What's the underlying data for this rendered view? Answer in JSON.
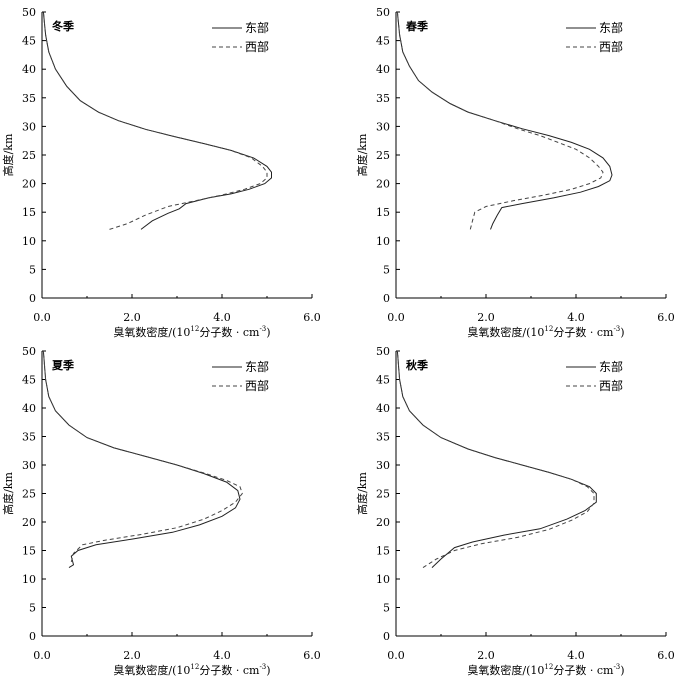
{
  "chart_data": [
    {
      "type": "line",
      "title": "冬季",
      "xlabel": "臭氧数密度/(10^12分子数·cm^-3)",
      "xlabel_pre": "臭氧数密度/(10",
      "xlabel_sup1": "12",
      "xlabel_mid": "分子数 · cm",
      "xlabel_sup2": "-3",
      "xlabel_post": ")",
      "ylabel": "高度/km",
      "xlim": [
        0,
        6
      ],
      "ylim": [
        0,
        50
      ],
      "xticks": [
        "0.0",
        "2.0",
        "4.0",
        "6.0"
      ],
      "yticks": [
        "0",
        "5",
        "10",
        "15",
        "20",
        "25",
        "30",
        "35",
        "40",
        "45",
        "50"
      ],
      "legend_position": "top-right",
      "series": [
        {
          "name": "东部",
          "style": "solid",
          "x": [
            2.2,
            2.45,
            2.8,
            3.05,
            3.2,
            3.7,
            4.2,
            4.6,
            4.95,
            5.1,
            5.1,
            5.0,
            4.7,
            4.2,
            3.6,
            2.9,
            2.3,
            1.7,
            1.25,
            0.85,
            0.55,
            0.3,
            0.15,
            0.08,
            0.03
          ],
          "y": [
            12,
            13.5,
            14.8,
            15.6,
            16.5,
            17.5,
            18.2,
            19,
            20,
            21,
            22,
            23,
            24.5,
            25.8,
            27,
            28.3,
            29.5,
            31,
            32.5,
            34.5,
            37,
            40,
            43,
            46,
            50
          ]
        },
        {
          "name": "西部",
          "style": "dashed",
          "x": [
            1.5,
            1.9,
            2.3,
            2.8,
            3.4,
            4.0,
            4.5,
            4.85,
            5.0,
            5.0,
            4.9,
            4.65,
            4.2,
            3.6,
            2.9,
            2.3,
            1.7,
            1.25,
            0.85,
            0.55,
            0.3,
            0.15,
            0.08,
            0.03
          ],
          "y": [
            12,
            13,
            14.5,
            16,
            17,
            18,
            19,
            20,
            21,
            22,
            23,
            24.5,
            25.8,
            27,
            28.3,
            29.5,
            31,
            32.5,
            34.5,
            37,
            40,
            43,
            46,
            50
          ]
        }
      ]
    },
    {
      "type": "line",
      "title": "春季",
      "xlabel": "臭氧数密度/(10^12分子数·cm^-3)",
      "xlabel_pre": "臭氧数密度/(10",
      "xlabel_sup1": "12",
      "xlabel_mid": "分子数 · cm",
      "xlabel_sup2": "-3",
      "xlabel_post": ")",
      "ylabel": "高度/km",
      "xlim": [
        0,
        6
      ],
      "ylim": [
        0,
        50
      ],
      "xticks": [
        "0.0",
        "2.0",
        "4.0",
        "6.0"
      ],
      "yticks": [
        "0",
        "5",
        "10",
        "15",
        "20",
        "25",
        "30",
        "35",
        "40",
        "45",
        "50"
      ],
      "legend_position": "top-right",
      "series": [
        {
          "name": "东部",
          "style": "solid",
          "x": [
            2.1,
            2.15,
            2.25,
            2.35,
            2.8,
            3.5,
            4.1,
            4.5,
            4.75,
            4.8,
            4.75,
            4.6,
            4.3,
            3.9,
            3.4,
            2.8,
            2.2,
            1.6,
            1.2,
            0.8,
            0.5,
            0.3,
            0.15,
            0.08,
            0.03
          ],
          "y": [
            12,
            13,
            14.5,
            15.8,
            16.5,
            17.5,
            18.5,
            19.5,
            20.5,
            21.5,
            23,
            24.5,
            26,
            27.2,
            28.4,
            29.6,
            31,
            32.5,
            34,
            36,
            38,
            40.5,
            43,
            46,
            50
          ]
        },
        {
          "name": "西部",
          "style": "dashed",
          "x": [
            1.65,
            1.7,
            1.75,
            2.0,
            2.6,
            3.3,
            3.9,
            4.3,
            4.55,
            4.6,
            4.5,
            4.3,
            4.0,
            3.6,
            3.2,
            2.7,
            2.2,
            1.6,
            1.2,
            0.8,
            0.5,
            0.3,
            0.15,
            0.08,
            0.03
          ],
          "y": [
            12,
            13.5,
            15,
            16,
            17,
            18,
            19,
            20,
            21,
            22,
            23,
            24.5,
            26,
            27.2,
            28.4,
            29.6,
            31,
            32.5,
            34,
            36,
            38,
            40.5,
            43,
            46,
            50
          ]
        }
      ]
    },
    {
      "type": "line",
      "title": "夏季",
      "xlabel": "臭氧数密度/(10^12分子数·cm^-3)",
      "xlabel_pre": "臭氧数密度/(10",
      "xlabel_sup1": "12",
      "xlabel_mid": "分子数 · cm",
      "xlabel_sup2": "-3",
      "xlabel_post": ")",
      "ylabel": "高度/km",
      "xlim": [
        0,
        6
      ],
      "ylim": [
        0,
        50
      ],
      "xticks": [
        "0.0",
        "2.0",
        "4.0",
        "6.0"
      ],
      "yticks": [
        "0",
        "5",
        "10",
        "15",
        "20",
        "25",
        "30",
        "35",
        "40",
        "45",
        "50"
      ],
      "legend_position": "top-right",
      "series": [
        {
          "name": "东部",
          "style": "solid",
          "x": [
            0.6,
            0.7,
            0.65,
            0.8,
            1.2,
            2.0,
            2.9,
            3.5,
            4.0,
            4.3,
            4.4,
            4.35,
            4.1,
            3.6,
            3.0,
            2.3,
            1.6,
            1.0,
            0.6,
            0.3,
            0.15,
            0.08,
            0.03
          ],
          "y": [
            12,
            12.5,
            14,
            15,
            16,
            17,
            18.2,
            19.5,
            21,
            22.5,
            24,
            25.5,
            27,
            28.5,
            30,
            31.5,
            33,
            34.8,
            37,
            39.5,
            42,
            45,
            50
          ]
        },
        {
          "name": "西部",
          "style": "dashed",
          "x": [
            0.65,
            0.7,
            0.9,
            1.4,
            2.2,
            3.0,
            3.6,
            4.0,
            4.3,
            4.45,
            4.4,
            4.1,
            3.6,
            3.0,
            2.3,
            1.6,
            1.0,
            0.6,
            0.3,
            0.15,
            0.08,
            0.03
          ],
          "y": [
            13,
            14.5,
            16,
            16.8,
            17.8,
            19,
            20.5,
            22,
            23.5,
            25,
            26.2,
            27.3,
            28.6,
            30,
            31.5,
            33,
            34.8,
            37,
            39.5,
            42,
            45,
            50
          ]
        }
      ]
    },
    {
      "type": "line",
      "title": "秋季",
      "xlabel": "臭氧数密度/(10^12分子数·cm^-3)",
      "xlabel_pre": "臭氧数密度/(10",
      "xlabel_sup1": "12",
      "xlabel_mid": "分子数 · cm",
      "xlabel_sup2": "-3",
      "xlabel_post": ")",
      "ylabel": "高度/km",
      "xlim": [
        0,
        6
      ],
      "ylim": [
        0,
        50
      ],
      "xticks": [
        "0.0",
        "2.0",
        "4.0",
        "6.0"
      ],
      "yticks": [
        "0",
        "5",
        "10",
        "15",
        "20",
        "25",
        "30",
        "35",
        "40",
        "45",
        "50"
      ],
      "legend_position": "top-right",
      "series": [
        {
          "name": "东部",
          "style": "solid",
          "x": [
            0.8,
            1.0,
            1.3,
            1.7,
            2.4,
            3.2,
            3.8,
            4.2,
            4.45,
            4.45,
            4.3,
            3.9,
            3.4,
            2.8,
            2.2,
            1.6,
            1.0,
            0.6,
            0.3,
            0.15,
            0.08,
            0.03
          ],
          "y": [
            12,
            13.5,
            15.5,
            16.5,
            17.7,
            18.8,
            20.5,
            22,
            23.5,
            25,
            26.2,
            27.5,
            28.7,
            30,
            31.3,
            32.8,
            34.8,
            37,
            39.5,
            42,
            45,
            50
          ]
        },
        {
          "name": "西部",
          "style": "dashed",
          "x": [
            0.6,
            0.9,
            1.3,
            1.9,
            2.7,
            3.4,
            3.9,
            4.25,
            4.4,
            4.4,
            4.25,
            3.9,
            3.4,
            2.8,
            2.2,
            1.6,
            1.0,
            0.6,
            0.3,
            0.15,
            0.08,
            0.03
          ],
          "y": [
            12,
            13.5,
            15,
            16.2,
            17.3,
            18.7,
            20.3,
            21.8,
            23.3,
            25,
            26.2,
            27.5,
            28.7,
            30,
            31.3,
            32.8,
            34.8,
            37,
            39.5,
            42,
            45,
            50
          ]
        }
      ]
    }
  ]
}
